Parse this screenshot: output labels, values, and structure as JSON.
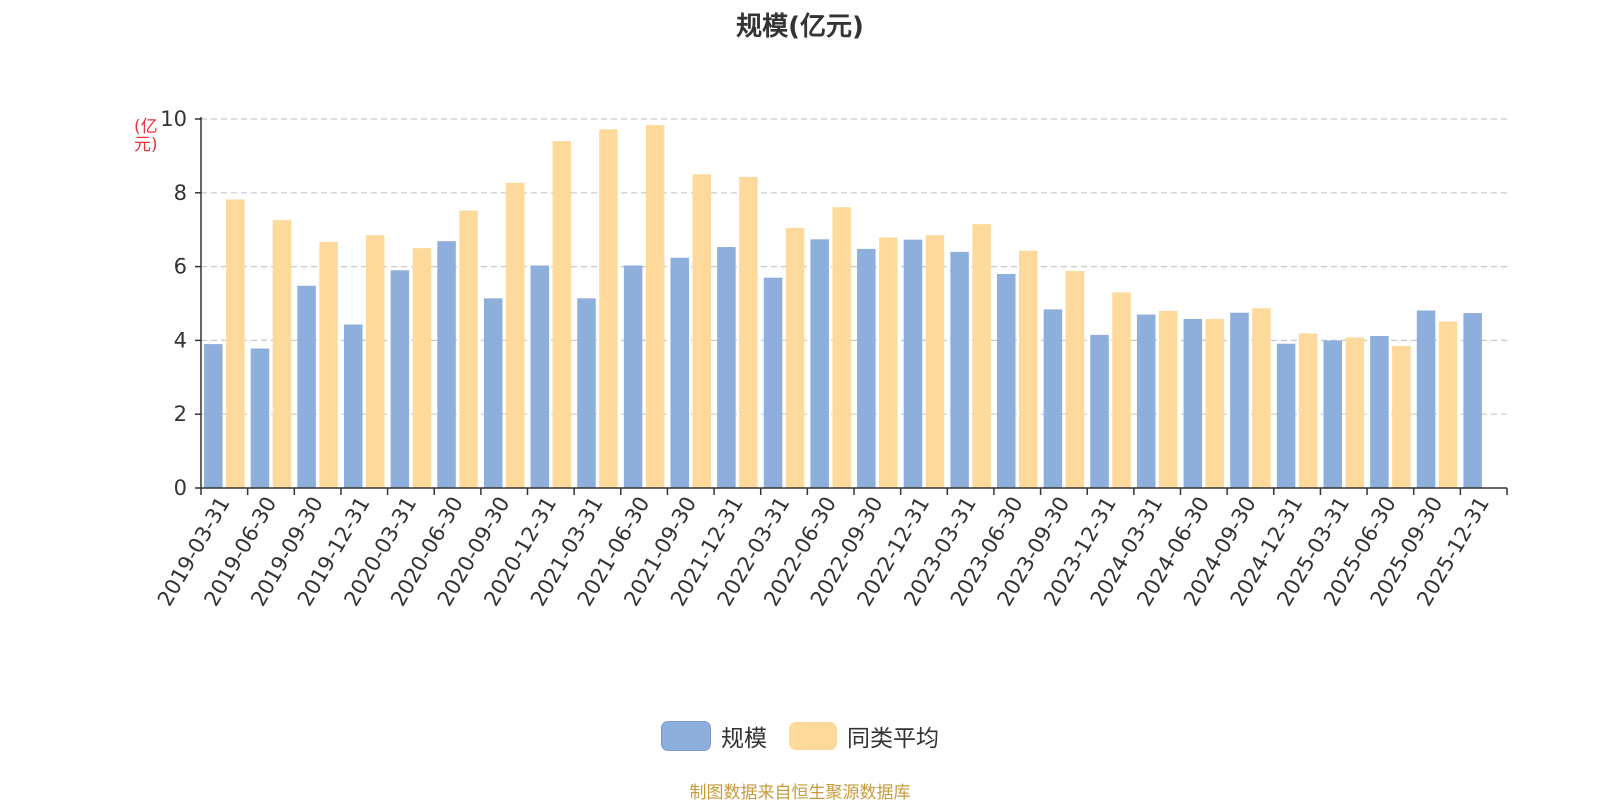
{
  "chart_data": {
    "type": "bar",
    "title": "规模(亿元)",
    "ylabel": "(亿元)",
    "ylim": [
      0,
      10
    ],
    "yticks": [
      0,
      2,
      4,
      6,
      8,
      10
    ],
    "grid": true,
    "legend_position": "bottom",
    "categories": [
      "2019-03-31",
      "2019-06-30",
      "2019-09-30",
      "2019-12-31",
      "2020-03-31",
      "2020-06-30",
      "2020-09-30",
      "2020-12-31",
      "2021-03-31",
      "2021-06-30",
      "2021-09-30",
      "2021-12-31",
      "2022-03-31",
      "2022-06-30",
      "2022-09-30",
      "2022-12-31",
      "2023-03-31",
      "2023-06-30",
      "2023-09-30",
      "2023-12-31",
      "2024-03-31",
      "2024-06-30",
      "2024-09-30",
      "2024-12-31",
      "2025-03-31",
      "2025-06-30",
      "2025-09-30",
      "2025-12-31"
    ],
    "series": [
      {
        "name": "规模",
        "color": "#8eaedb",
        "values": [
          3.9,
          3.78,
          5.48,
          4.43,
          5.9,
          6.69,
          5.14,
          6.03,
          5.14,
          6.03,
          6.24,
          6.53,
          5.7,
          6.74,
          6.48,
          6.73,
          6.4,
          5.8,
          4.84,
          4.15,
          4.7,
          4.58,
          4.75,
          3.91,
          4.0,
          4.12,
          4.81,
          4.74
        ]
      },
      {
        "name": "同类平均",
        "color": "#fdd99b",
        "values": [
          7.82,
          7.26,
          6.67,
          6.85,
          6.5,
          7.52,
          8.27,
          9.4,
          9.72,
          9.84,
          8.5,
          8.43,
          7.05,
          7.61,
          6.79,
          6.85,
          7.15,
          6.43,
          5.88,
          5.3,
          4.8,
          4.58,
          4.87,
          4.19,
          4.08,
          3.85,
          4.51,
          null
        ]
      }
    ]
  },
  "legend": {
    "items": [
      {
        "label": "规模",
        "color": "#8eaedb"
      },
      {
        "label": "同类平均",
        "color": "#fdd99b"
      }
    ]
  },
  "source_text": "制图数据来自恒生聚源数据库"
}
